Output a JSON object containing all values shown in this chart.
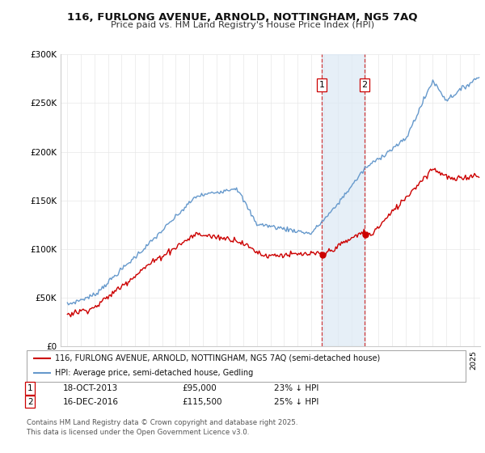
{
  "title_line1": "116, FURLONG AVENUE, ARNOLD, NOTTINGHAM, NG5 7AQ",
  "title_line2": "Price paid vs. HM Land Registry's House Price Index (HPI)",
  "background_color": "#ffffff",
  "grid_color": "#e8e8e8",
  "hpi_color": "#6699cc",
  "price_color": "#cc0000",
  "span_fill_color": "#dce9f5",
  "marker1_x": 2013.8,
  "marker2_x": 2016.96,
  "legend_price_label": "116, FURLONG AVENUE, ARNOLD, NOTTINGHAM, NG5 7AQ (semi-detached house)",
  "legend_hpi_label": "HPI: Average price, semi-detached house, Gedling",
  "table_row1": [
    "1",
    "18-OCT-2013",
    "£95,000",
    "23% ↓ HPI"
  ],
  "table_row2": [
    "2",
    "16-DEC-2016",
    "£115,500",
    "25% ↓ HPI"
  ],
  "footer": "Contains HM Land Registry data © Crown copyright and database right 2025.\nThis data is licensed under the Open Government Licence v3.0.",
  "ylim_max": 300000,
  "xlim_min": 1994.5,
  "xlim_max": 2025.5
}
